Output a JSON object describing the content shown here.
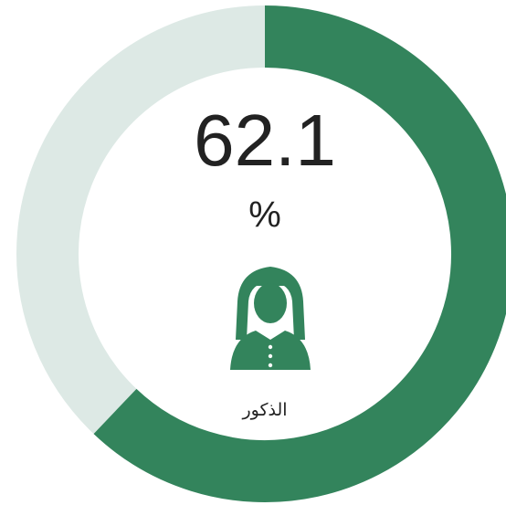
{
  "chart_data": {
    "type": "donut",
    "value": 62.1,
    "unit": "%",
    "label": "الذكور",
    "range": [
      0,
      100
    ],
    "color": "#33845c",
    "track_color": "#dde9e5"
  }
}
